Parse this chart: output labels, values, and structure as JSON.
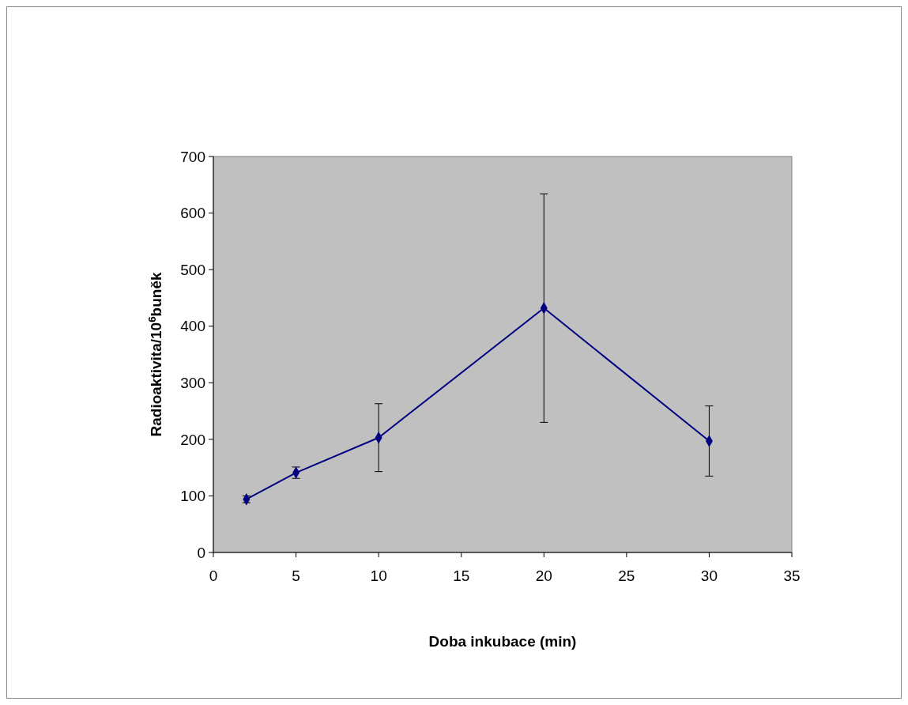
{
  "chart_data": {
    "type": "line",
    "xlabel": "Doba inkubace (min)",
    "ylabel": "Radioaktivita/10$^{6}$buněk",
    "x": [
      2,
      5,
      10,
      20,
      30
    ],
    "series": [
      {
        "color": "#000080",
        "values": [
          94,
          141,
          203,
          432,
          197
        ],
        "errors": [
          6,
          10,
          60,
          202,
          62
        ]
      }
    ],
    "xlim": [
      0,
      35
    ],
    "xticks": [
      0,
      5,
      10,
      15,
      20,
      25,
      30,
      35
    ],
    "ylim": [
      0,
      700
    ],
    "yticks": [
      0,
      100,
      200,
      300,
      400,
      500,
      600,
      700
    ],
    "marker": "diamond",
    "line_style": "solid"
  }
}
